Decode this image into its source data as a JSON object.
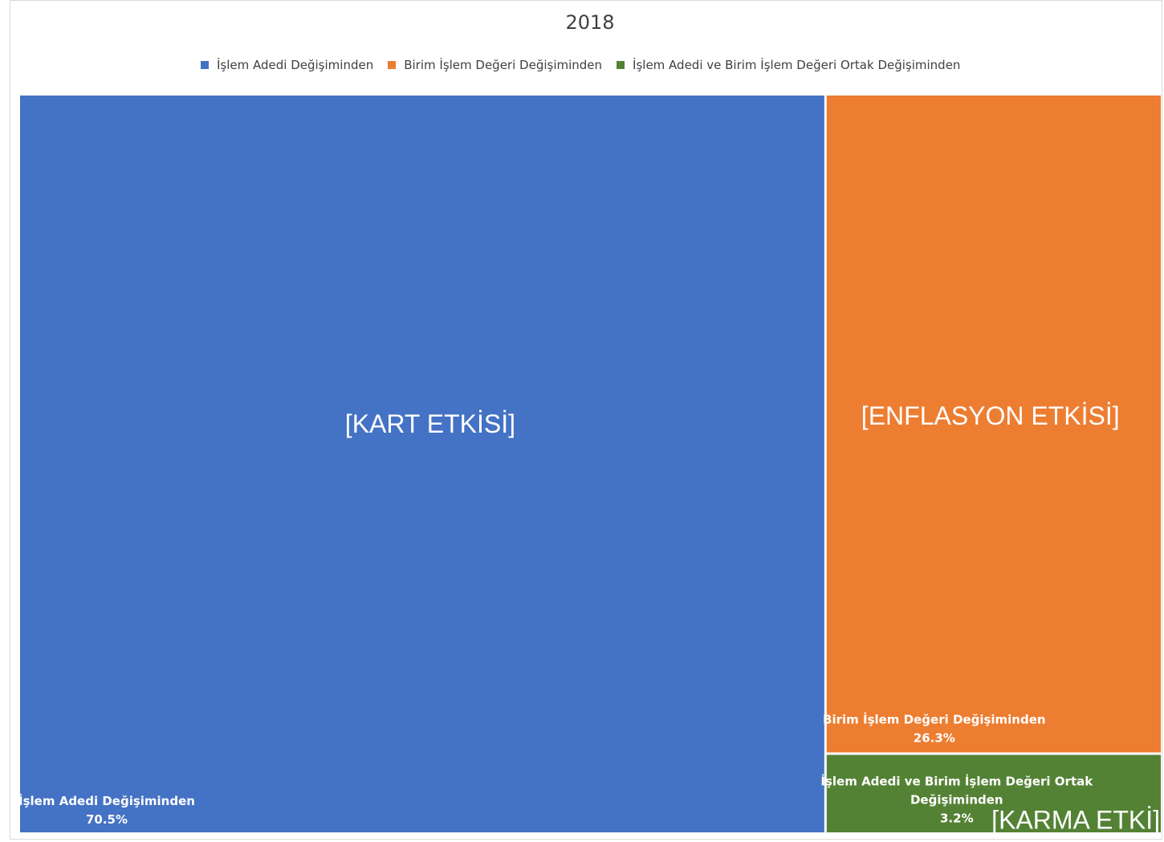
{
  "chart_data": {
    "type": "treemap",
    "title": "2018",
    "series": [
      {
        "name": "İşlem Adedi Değişiminden",
        "value": 70.5,
        "value_label": "70.5%",
        "color": "#4472C4",
        "annotation": "[KART ETKİSİ]"
      },
      {
        "name": "Birim İşlem Değeri Değişiminden",
        "value": 26.3,
        "value_label": "26.3%",
        "color": "#ED7D31",
        "annotation": "[ENFLASYON ETKİSİ]"
      },
      {
        "name": "İşlem Adedi ve Birim İşlem Değeri Ortak Değişiminden",
        "label_line1": "İşlem Adedi ve Birim İşlem Değeri Ortak",
        "label_line2": "Değişiminden",
        "value": 3.2,
        "value_label": "3.2%",
        "color": "#548235",
        "annotation": "[KARMA ETKİ]"
      }
    ],
    "legend_position": "top"
  }
}
